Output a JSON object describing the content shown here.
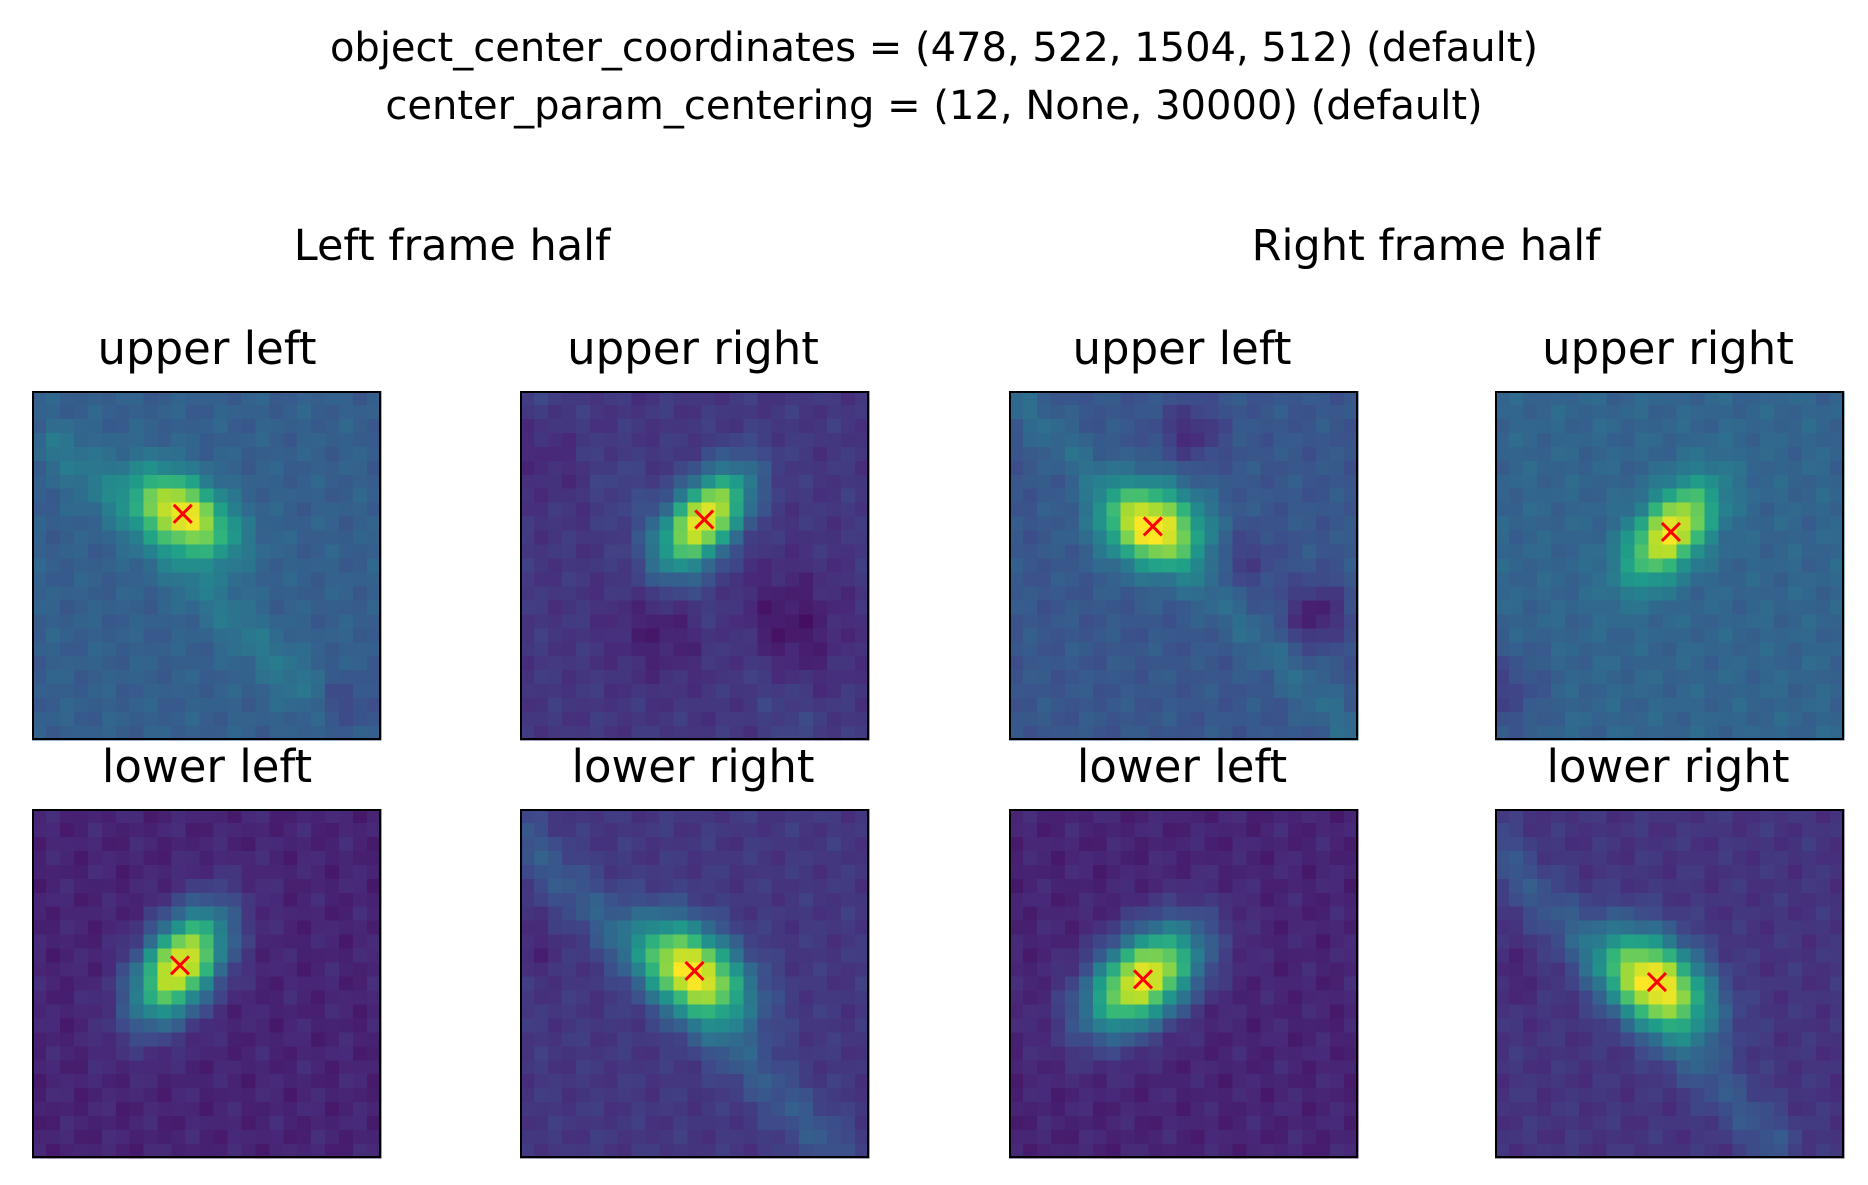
{
  "suptitle": {
    "line1": "object_center_coordinates = (478, 522, 1504, 512) (default)",
    "line2": "center_param_centering = (12, None, 30000) (default)"
  },
  "halves": [
    {
      "title": "Left frame half"
    },
    {
      "title": "Right frame half"
    }
  ],
  "chart_data": [
    {
      "type": "heatmap",
      "half": "Left frame half",
      "title": "upper left",
      "grid": "25x25",
      "colormap": "viridis",
      "marker": {
        "symbol": "x",
        "color": "#ff0000"
      },
      "peak": [
        10.8,
        8.8
      ],
      "sigma": [
        2.7,
        1.6
      ],
      "angle_deg": 35,
      "background": 0.3,
      "streaks": [
        {
          "x0": 2,
          "y0": 4,
          "x1": 22,
          "y1": 24,
          "w": 1.2,
          "a": 0.1
        }
      ],
      "dark_spots": [
        [
          22,
          23,
          1.5,
          0.15
        ]
      ]
    },
    {
      "type": "heatmap",
      "half": "Left frame half",
      "title": "upper right",
      "grid": "25x25",
      "colormap": "viridis",
      "marker": {
        "symbol": "x",
        "color": "#ff0000"
      },
      "peak": [
        13.2,
        9.2
      ],
      "sigma": [
        2.8,
        1.5
      ],
      "angle_deg": -50,
      "background": 0.16,
      "streaks": [
        {
          "x0": 2,
          "y0": 0,
          "x1": 20,
          "y1": 24,
          "w": 1.5,
          "a": 0.05
        }
      ],
      "dark_spots": [
        [
          19,
          17,
          3.0,
          0.1
        ],
        [
          10,
          17,
          2.5,
          0.08
        ],
        [
          3,
          4,
          2.5,
          0.06
        ]
      ]
    },
    {
      "type": "heatmap",
      "half": "Right frame half",
      "title": "upper left",
      "grid": "25x25",
      "colormap": "viridis",
      "marker": {
        "symbol": "x",
        "color": "#ff0000"
      },
      "peak": [
        10.3,
        9.7
      ],
      "sigma": [
        2.5,
        1.9
      ],
      "angle_deg": 20,
      "background": 0.27,
      "streaks": [
        {
          "x0": 1,
          "y0": 1,
          "x1": 24,
          "y1": 24,
          "w": 1.0,
          "a": 0.08
        }
      ],
      "dark_spots": [
        [
          22,
          16,
          1.5,
          0.2
        ],
        [
          13,
          3,
          1.5,
          0.15
        ],
        [
          17,
          12,
          1.5,
          0.1
        ]
      ]
    },
    {
      "type": "heatmap",
      "half": "Right frame half",
      "title": "upper right",
      "grid": "25x25",
      "colormap": "viridis",
      "marker": {
        "symbol": "x",
        "color": "#ff0000"
      },
      "peak": [
        12.6,
        10.1
      ],
      "sigma": [
        2.8,
        1.5
      ],
      "angle_deg": -50,
      "background": 0.32,
      "streaks": [],
      "dark_spots": [
        [
          0.5,
          21.5,
          2.0,
          0.12
        ]
      ]
    },
    {
      "type": "heatmap",
      "half": "Left frame half",
      "title": "lower left",
      "grid": "25x25",
      "colormap": "viridis",
      "marker": {
        "symbol": "x",
        "color": "#ff0000"
      },
      "peak": [
        10.6,
        11.2
      ],
      "sigma": [
        3.0,
        1.7
      ],
      "angle_deg": -55,
      "background": 0.1,
      "streaks": [],
      "dark_spots": []
    },
    {
      "type": "heatmap",
      "half": "Left frame half",
      "title": "lower right",
      "grid": "25x25",
      "colormap": "viridis",
      "marker": {
        "symbol": "x",
        "color": "#ff0000"
      },
      "peak": [
        12.5,
        11.6
      ],
      "sigma": [
        3.0,
        1.8
      ],
      "angle_deg": 40,
      "background": 0.16,
      "streaks": [
        {
          "x0": 0,
          "y0": 2,
          "x1": 22,
          "y1": 24,
          "w": 1.3,
          "a": 0.12
        }
      ],
      "dark_spots": [
        [
          1,
          10,
          1.5,
          0.05
        ]
      ]
    },
    {
      "type": "heatmap",
      "half": "Right frame half",
      "title": "lower left",
      "grid": "25x25",
      "colormap": "viridis",
      "marker": {
        "symbol": "x",
        "color": "#ff0000"
      },
      "peak": [
        9.6,
        12.2
      ],
      "sigma": [
        3.2,
        1.9
      ],
      "angle_deg": -40,
      "background": 0.1,
      "streaks": [],
      "dark_spots": []
    },
    {
      "type": "heatmap",
      "half": "Right frame half",
      "title": "lower right",
      "grid": "25x25",
      "colormap": "viridis",
      "marker": {
        "symbol": "x",
        "color": "#ff0000"
      },
      "peak": [
        11.6,
        12.4
      ],
      "sigma": [
        3.0,
        1.9
      ],
      "angle_deg": 40,
      "background": 0.15,
      "streaks": [
        {
          "x0": 0,
          "y0": 3,
          "x1": 20,
          "y1": 24,
          "w": 1.3,
          "a": 0.12
        }
      ],
      "dark_spots": [
        [
          1,
          12,
          1.5,
          0.05
        ]
      ]
    }
  ]
}
